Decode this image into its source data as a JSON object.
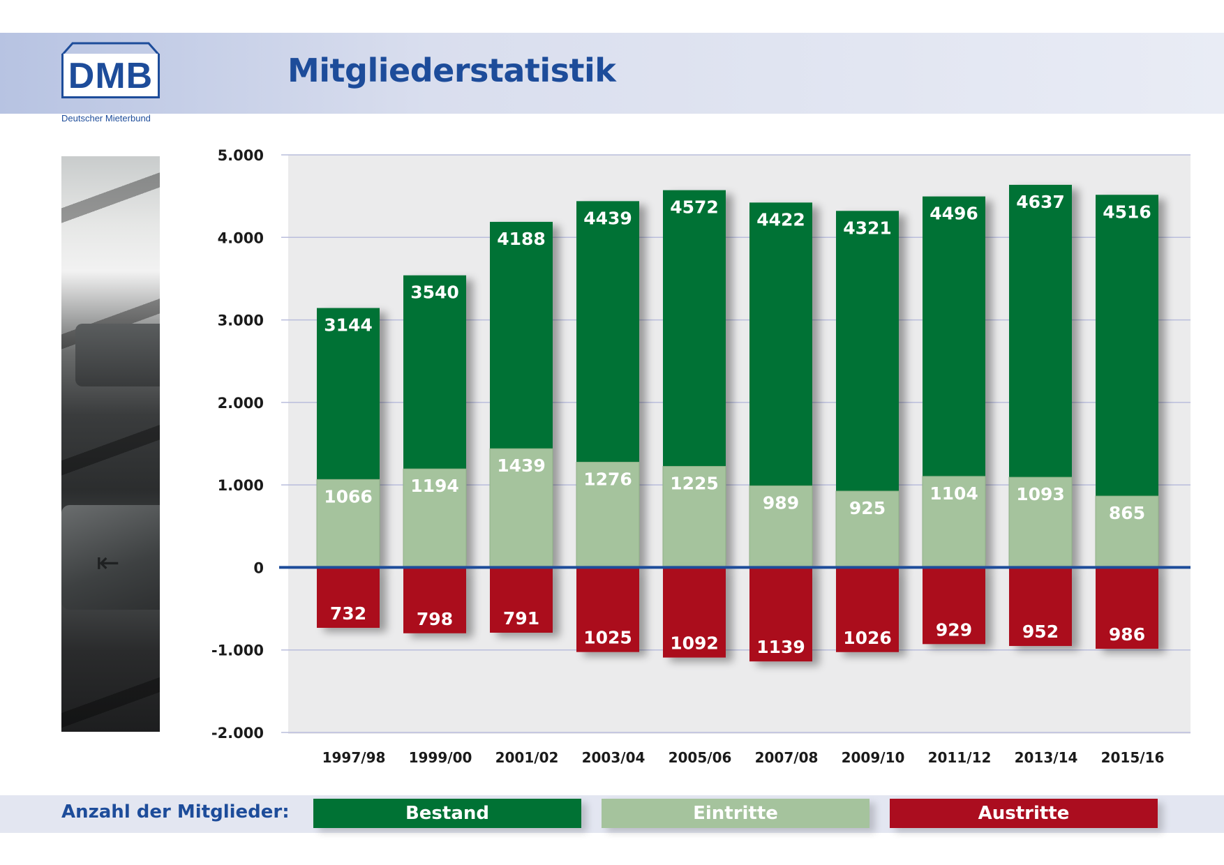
{
  "header": {
    "logo_text": "DMB",
    "logo_subtitle": "Deutscher Mieterbund",
    "title": "Mitgliederstatistik"
  },
  "legend": {
    "label": "Anzahl der Mitglieder:",
    "items": [
      {
        "label": "Bestand",
        "color": "#007234"
      },
      {
        "label": "Eintritte",
        "color": "#a5c39d"
      },
      {
        "label": "Austritte",
        "color": "#ab0d1f"
      }
    ]
  },
  "chart_data": {
    "type": "bar",
    "title": "",
    "xlabel": "",
    "ylabel": "",
    "ylim": [
      -2000,
      5000
    ],
    "yticks": [
      5000,
      4000,
      3000,
      2000,
      1000,
      0,
      -1000,
      -2000
    ],
    "ytick_labels": [
      "5.000",
      "4.000",
      "3.000",
      "2.000",
      "1.000",
      "0",
      "-1.000",
      "-2.000"
    ],
    "grid": true,
    "categories": [
      "1997/98",
      "1999/00",
      "2001/02",
      "2003/04",
      "2005/06",
      "2007/08",
      "2009/10",
      "2011/12",
      "2013/14",
      "2015/16"
    ],
    "series": [
      {
        "name": "Bestand",
        "color": "#007234",
        "values": [
          3144,
          3540,
          4188,
          4439,
          4572,
          4422,
          4321,
          4496,
          4637,
          4516
        ]
      },
      {
        "name": "Eintritte",
        "color": "#a5c39d",
        "values": [
          1066,
          1194,
          1439,
          1276,
          1225,
          989,
          925,
          1104,
          1093,
          865
        ]
      },
      {
        "name": "Austritte",
        "color": "#ab0d1f",
        "values": [
          732,
          798,
          791,
          1025,
          1092,
          1139,
          1026,
          929,
          952,
          986
        ]
      }
    ]
  }
}
